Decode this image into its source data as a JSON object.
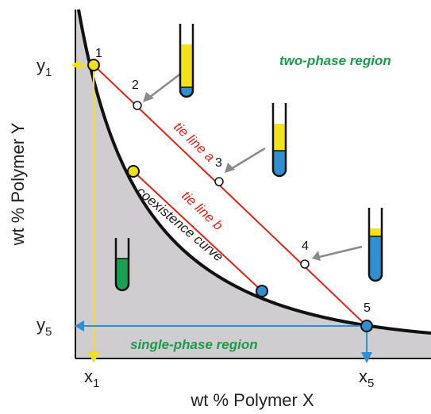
{
  "axes": {
    "x_title": "wt % Polymer X",
    "y_title": "wt % Polymer Y",
    "x_ticks": [
      {
        "main": "x",
        "sub": "1"
      },
      {
        "main": "x",
        "sub": "5"
      }
    ],
    "y_ticks": [
      {
        "main": "y",
        "sub": "1"
      },
      {
        "main": "y",
        "sub": "5"
      }
    ]
  },
  "regions": {
    "two_phase": "two-phase region",
    "single_phase": "single-phase region"
  },
  "labels": {
    "tie_line_a": "tie line a",
    "tie_line_b": "tie line b",
    "coexistence_curve": "coexistence curve"
  },
  "points": [
    "1",
    "2",
    "3",
    "4",
    "5"
  ],
  "colors": {
    "region_fill": "#cfcdd0",
    "curve": "#111111",
    "tie_line": "#e2231a",
    "yellow_phase": "#f2e21a",
    "blue_phase": "#2f8fd0",
    "green_phase": "#1aa050",
    "yellow_projection": "#f2e21a",
    "blue_projection": "#2f8fd0",
    "region_text": "#1a9a4a"
  },
  "tubes": [
    {
      "name": "tube-point-2",
      "top_phase": "yellow",
      "bottom_phase": "blue",
      "yellow_fraction": 0.8
    },
    {
      "name": "tube-point-3",
      "top_phase": "yellow",
      "bottom_phase": "blue",
      "yellow_fraction": 0.45
    },
    {
      "name": "tube-point-4",
      "top_phase": "yellow",
      "bottom_phase": "blue",
      "yellow_fraction": 0.15
    },
    {
      "name": "tube-single-phase",
      "phase": "green"
    }
  ]
}
